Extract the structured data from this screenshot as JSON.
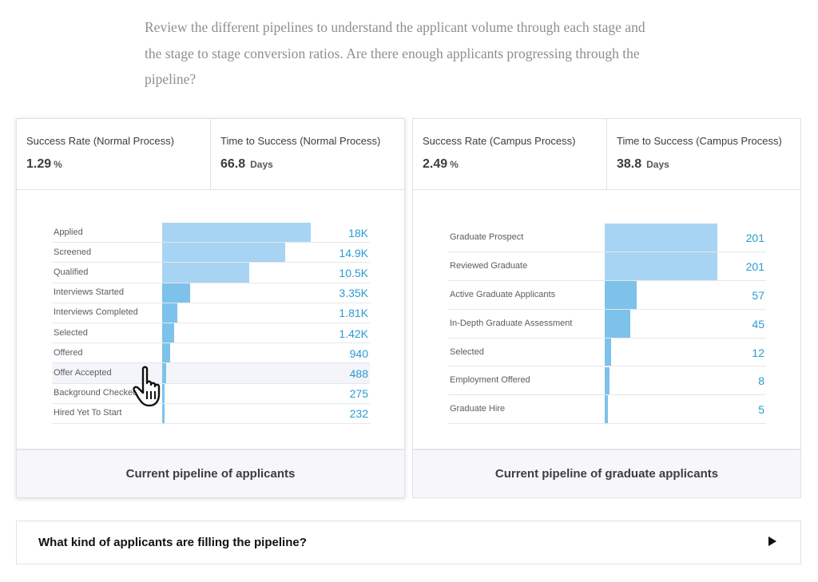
{
  "intro_text": "Review the different pipelines to understand the applicant volume through each stage and the stage to stage conversion ratios. Are there enough applicants progressing through the pipeline?",
  "panels": [
    {
      "metrics": [
        {
          "label": "Success Rate (Normal Process)",
          "value": "1.29",
          "unit": "%"
        },
        {
          "label": "Time to Success (Normal Process)",
          "value": "66.8",
          "unit": "Days"
        }
      ],
      "caption": "Current pipeline of applicants",
      "chart_data": {
        "type": "bar",
        "orientation": "horizontal",
        "categories": [
          "Applied",
          "Screened",
          "Qualified",
          "Interviews Started",
          "Interviews Completed",
          "Selected",
          "Offered",
          "Offer Accepted",
          "Background Checked",
          "Hired Yet To Start"
        ],
        "values": [
          18000,
          14900,
          10500,
          3350,
          1810,
          1420,
          940,
          488,
          275,
          232
        ],
        "value_labels": [
          "18K",
          "14.9K",
          "10.5K",
          "3.35K",
          "1.81K",
          "1.42K",
          "940",
          "488",
          "275",
          "232"
        ],
        "highlighted_category": "Offer Accepted",
        "color": "#a7d4f2",
        "xlim": [
          0,
          18000
        ]
      }
    },
    {
      "metrics": [
        {
          "label": "Success Rate (Campus Process)",
          "value": "2.49",
          "unit": "%"
        },
        {
          "label": "Time to Success (Campus Process)",
          "value": "38.8",
          "unit": "Days"
        }
      ],
      "caption": "Current pipeline of graduate applicants",
      "chart_data": {
        "type": "bar",
        "orientation": "horizontal",
        "categories": [
          "Graduate Prospect",
          "Reviewed Graduate",
          "Active Graduate Applicants",
          "In-Depth Graduate Assessment",
          "Selected",
          "Employment Offered",
          "Graduate Hire"
        ],
        "values": [
          201,
          201,
          57,
          45,
          12,
          8,
          5
        ],
        "value_labels": [
          "201",
          "201",
          "57",
          "45",
          "12",
          "8",
          "5"
        ],
        "color": "#a7d4f2",
        "xlim": [
          0,
          201
        ]
      }
    }
  ],
  "accordion": {
    "title": "What kind of applicants are filling the pipeline?"
  },
  "icons": {
    "cursor": "hand-pointer-icon",
    "accordion": "triangle-right-icon"
  },
  "colors": {
    "bar": "#a7d4f2",
    "bar_dark": "#7dc2ea",
    "value_text": "#2a9bd1"
  }
}
